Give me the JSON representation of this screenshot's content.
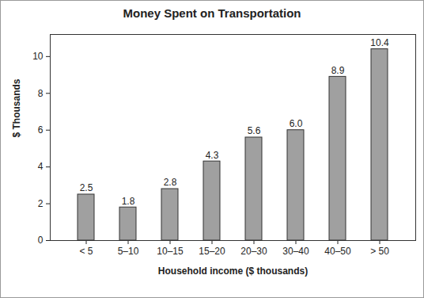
{
  "chart_data": {
    "type": "bar",
    "title": "Money Spent on Transportation",
    "x_label": "Household income ($ thousands)",
    "y_label": "$ Thousands",
    "categories": [
      "< 5",
      "5–10",
      "10–15",
      "15–20",
      "20–30",
      "30–40",
      "40–50",
      "> 50"
    ],
    "values": [
      2.5,
      1.8,
      2.8,
      4.3,
      5.6,
      6.0,
      8.9,
      10.4
    ],
    "value_labels": [
      "2.5",
      "1.8",
      "2.8",
      "4.3",
      "5.6",
      "6.0",
      "8.9",
      "10.4"
    ],
    "color": "#a0a0a0",
    "ylim": [
      0,
      11.2
    ],
    "yticks": [
      0,
      2,
      4,
      6,
      8,
      10
    ],
    "grid": false,
    "data_labels": true
  }
}
